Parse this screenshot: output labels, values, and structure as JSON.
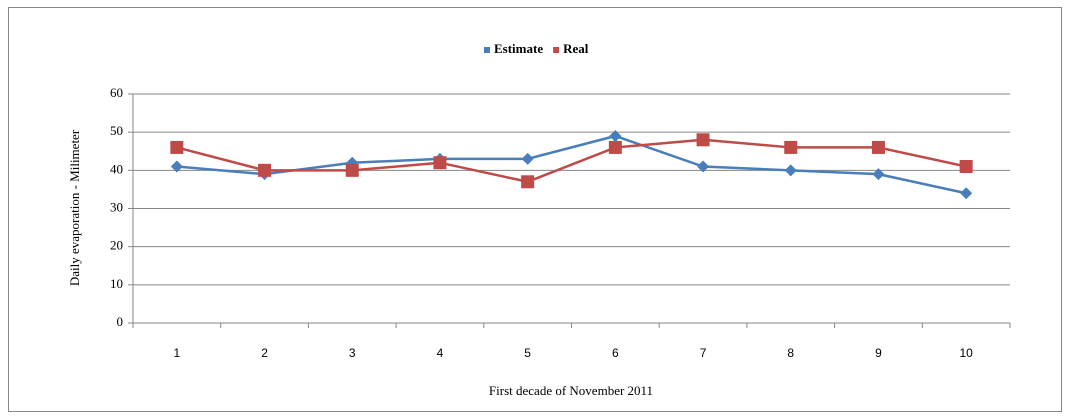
{
  "chart_data": {
    "type": "line",
    "y_label": "Daily evaporation - Milimeter",
    "x_label": "First decade of November 2011",
    "categories": [
      "1",
      "2",
      "3",
      "4",
      "5",
      "6",
      "7",
      "8",
      "9",
      "10"
    ],
    "series": [
      {
        "name": "Estimate",
        "color": "#4a7ebb",
        "marker": "diamond",
        "values": [
          41,
          39,
          42,
          43,
          43,
          49,
          41,
          40,
          39,
          34
        ]
      },
      {
        "name": "Real",
        "color": "#be4b48",
        "marker": "square",
        "values": [
          46,
          40,
          40,
          42,
          37,
          46,
          48,
          46,
          46,
          41
        ]
      }
    ],
    "ylim": [
      0,
      60
    ],
    "yticks": [
      0,
      10,
      20,
      30,
      40,
      50,
      60
    ],
    "grid": true,
    "legend": "top"
  }
}
